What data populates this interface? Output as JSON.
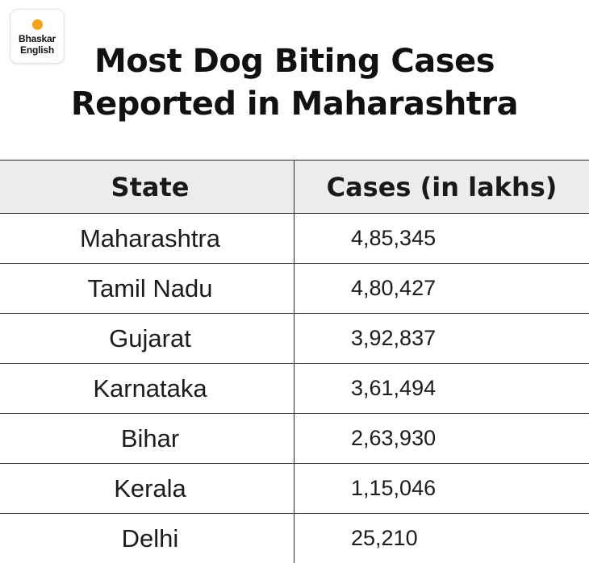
{
  "logo": {
    "line1": "Bhaskar",
    "line2": "English",
    "dot_color": "#f6a21a"
  },
  "title": {
    "line1": "Most Dog Biting Cases",
    "line2": "Reported in Maharashtra"
  },
  "chart_data": {
    "type": "table",
    "title": "Most Dog Biting Cases Reported in Maharashtra",
    "columns": [
      "State",
      "Cases (in lakhs)"
    ],
    "rows": [
      {
        "state": "Maharashtra",
        "cases": "4,85,345"
      },
      {
        "state": "Tamil Nadu",
        "cases": "4,80,427"
      },
      {
        "state": "Gujarat",
        "cases": "3,92,837"
      },
      {
        "state": "Karnataka",
        "cases": "3,61,494"
      },
      {
        "state": "Bihar",
        "cases": "2,63,930"
      },
      {
        "state": "Kerala",
        "cases": "1,15,046"
      },
      {
        "state": "Delhi",
        "cases": "25,210"
      }
    ],
    "header_background": "#ececec"
  }
}
